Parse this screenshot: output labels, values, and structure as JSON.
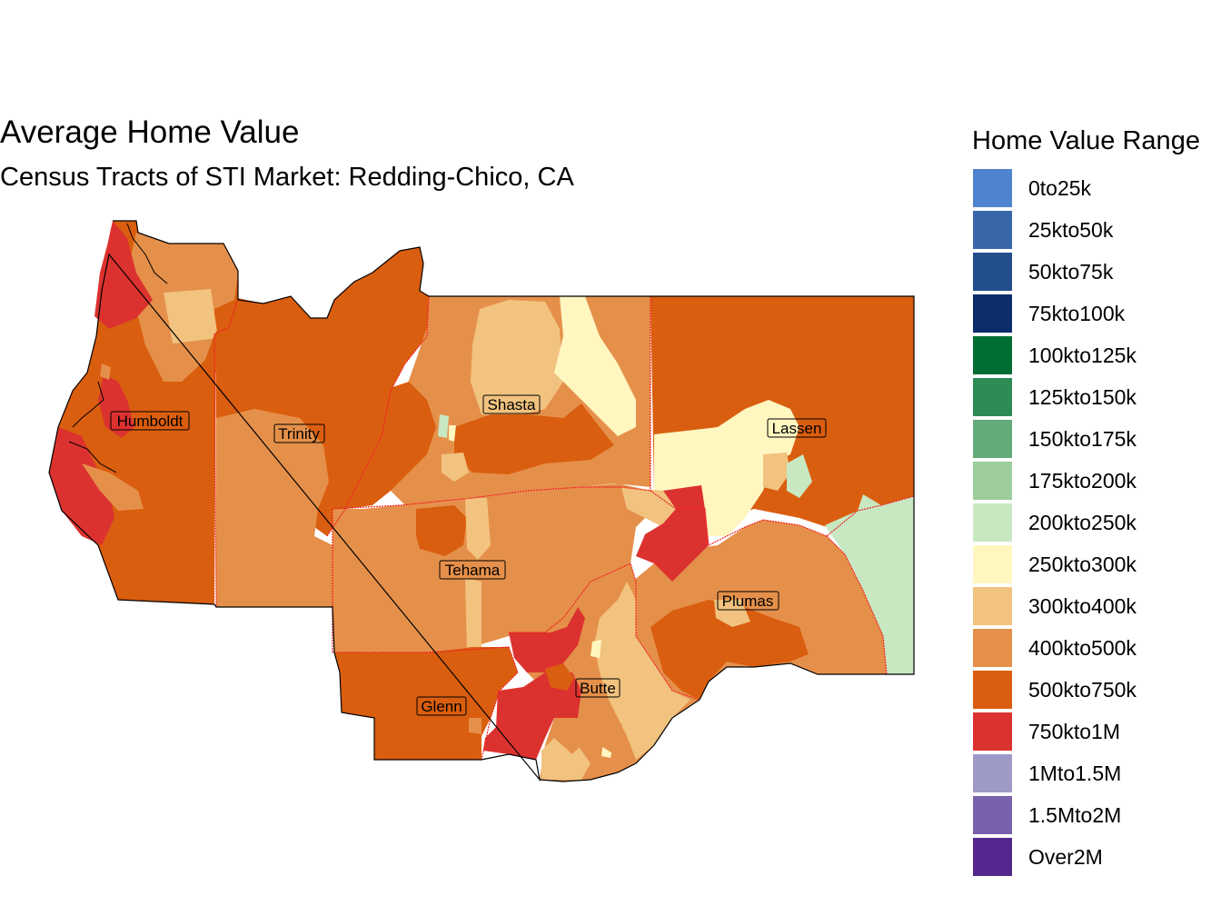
{
  "title": "Average Home Value",
  "subtitle": "Census Tracts of STI Market: Redding-Chico, CA",
  "legend": {
    "title": "Home Value Range",
    "items": [
      {
        "label": "0to25k",
        "color": "#5083cf"
      },
      {
        "label": "25kto50k",
        "color": "#3866a8"
      },
      {
        "label": "50kto75k",
        "color": "#224e8c"
      },
      {
        "label": "75kto100k",
        "color": "#0b2d6a"
      },
      {
        "label": "100kto125k",
        "color": "#006d32"
      },
      {
        "label": "125kto150k",
        "color": "#2d8c55"
      },
      {
        "label": "150kto175k",
        "color": "#63ab79"
      },
      {
        "label": "175kto200k",
        "color": "#9ccd9a"
      },
      {
        "label": "200kto250k",
        "color": "#c8e8c2"
      },
      {
        "label": "250kto300k",
        "color": "#fff6c0"
      },
      {
        "label": "300kto400k",
        "color": "#f1c37f"
      },
      {
        "label": "400kto500k",
        "color": "#e5904a"
      },
      {
        "label": "500kto750k",
        "color": "#da5e0f"
      },
      {
        "label": "750kto1M",
        "color": "#dc322f"
      },
      {
        "label": "1Mto1.5M",
        "color": "#9e9ac8"
      },
      {
        "label": "1.5Mto2M",
        "color": "#7a61ad"
      },
      {
        "label": "Over2M",
        "color": "#54278f"
      }
    ]
  },
  "counties": [
    {
      "name": "Humboldt"
    },
    {
      "name": "Trinity"
    },
    {
      "name": "Shasta"
    },
    {
      "name": "Lassen"
    },
    {
      "name": "Tehama"
    },
    {
      "name": "Plumas"
    },
    {
      "name": "Butte"
    },
    {
      "name": "Glenn"
    }
  ]
}
